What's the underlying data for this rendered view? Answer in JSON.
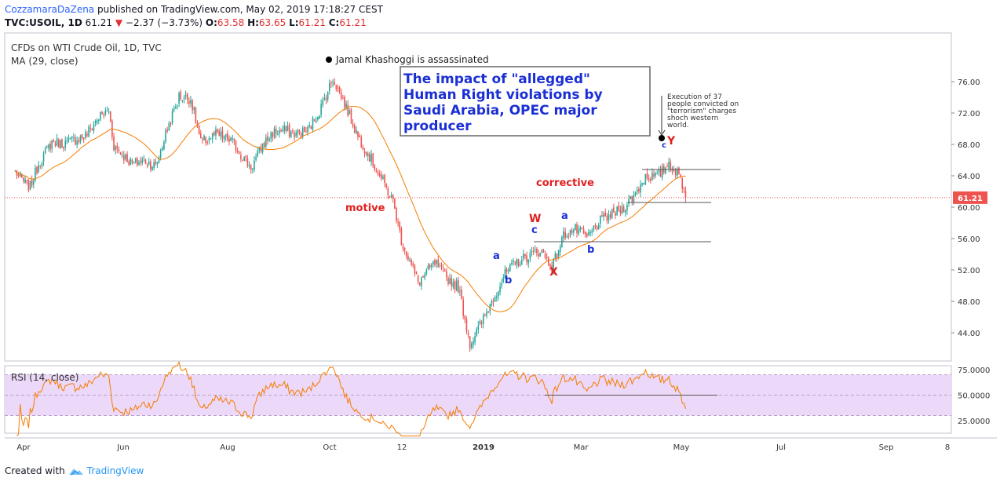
{
  "header": {
    "author": "CozzamaraDaZena",
    "published": "published on TradingView.com, May 02, 2019 17:18:27 CEST",
    "symbol": "TVC:USOIL, 1D",
    "last": "61.21",
    "change_arrow": "▼",
    "change": "−2.37 (−3.73%)",
    "o_label": "O:",
    "o_val": "63.58",
    "h_label": "H:",
    "h_val": "63.65",
    "l_label": "L:",
    "l_val": "61.21",
    "c_label": "C:",
    "c_val": "61.21"
  },
  "legend": {
    "series": "CFDs on WTI Crude Oil, 1D, TVC",
    "ma": "MA (29, close)",
    "rsi": "RSI (14, close)"
  },
  "annotations": {
    "khashoggi": "Jamal Khashoggi is assassinated",
    "headline": "The impact of \"allegged\" Human Right violations by Saudi Arabia, OPEC major producer",
    "execution": "Execution of 37 people convicted on \"terrorism\" charges shoch western world.",
    "motive": "motive",
    "corrective": "corrective",
    "wave_W": "W",
    "wave_X": "X",
    "wave_Y": "Y",
    "wave_a1": "a",
    "wave_b1": "b",
    "wave_c1": "c",
    "wave_a2": "a",
    "wave_b2": "b",
    "wave_c2": "c"
  },
  "price_badge": "61.21",
  "colors": {
    "accent": "#2962ff",
    "up": "#26a69a",
    "down": "#ef5350",
    "ma": "#f57c00",
    "rsi": "#f57c00",
    "rsi_band": "#ecd8f8",
    "wave_red": "#e02020",
    "wave_blue": "#1a2fd4",
    "badge": "#ef5350"
  },
  "footer": {
    "created_with": "Created with",
    "brand": "TradingView"
  },
  "chart_data": {
    "type": "candlestick",
    "title": "CFDs on WTI Crude Oil, 1D, TVC",
    "y_ticks": [
      "76.00",
      "72.00",
      "68.00",
      "64.00",
      "60.00",
      "56.00",
      "52.00",
      "48.00",
      "44.00"
    ],
    "ylim": [
      41,
      78
    ],
    "x_ticks": [
      "Apr",
      "Jun",
      "Aug",
      "Oct",
      "12",
      "2019",
      "Mar",
      "May",
      "Jul",
      "Sep",
      "8"
    ],
    "close_path": [
      [
        "2018-03-27",
        64.5
      ],
      [
        "2018-04-02",
        63.0
      ],
      [
        "2018-04-05",
        62.6
      ],
      [
        "2018-04-10",
        65.5
      ],
      [
        "2018-04-18",
        68.3
      ],
      [
        "2018-04-25",
        68.1
      ],
      [
        "2018-05-08",
        69.1
      ],
      [
        "2018-05-16",
        71.5
      ],
      [
        "2018-05-22",
        72.3
      ],
      [
        "2018-05-25",
        67.8
      ],
      [
        "2018-06-05",
        65.5
      ],
      [
        "2018-06-12",
        66.0
      ],
      [
        "2018-06-19",
        65.2
      ],
      [
        "2018-06-26",
        70.0
      ],
      [
        "2018-07-03",
        74.1
      ],
      [
        "2018-07-10",
        73.8
      ],
      [
        "2018-07-16",
        68.2
      ],
      [
        "2018-07-25",
        69.3
      ],
      [
        "2018-08-03",
        68.5
      ],
      [
        "2018-08-15",
        65.0
      ],
      [
        "2018-08-22",
        67.9
      ],
      [
        "2018-08-28",
        69.5
      ],
      [
        "2018-09-04",
        69.8
      ],
      [
        "2018-09-11",
        69.3
      ],
      [
        "2018-09-18",
        69.8
      ],
      [
        "2018-09-25",
        72.3
      ],
      [
        "2018-10-03",
        76.4
      ],
      [
        "2018-10-10",
        73.2
      ],
      [
        "2018-10-18",
        69.0
      ],
      [
        "2018-10-24",
        66.8
      ],
      [
        "2018-11-01",
        63.6
      ],
      [
        "2018-11-08",
        60.7
      ],
      [
        "2018-11-13",
        55.7
      ],
      [
        "2018-11-23",
        50.4
      ],
      [
        "2018-12-03",
        52.9
      ],
      [
        "2018-12-10",
        51.0
      ],
      [
        "2018-12-17",
        49.8
      ],
      [
        "2018-12-24",
        42.5
      ],
      [
        "2018-12-31",
        45.4
      ],
      [
        "2019-01-07",
        48.5
      ],
      [
        "2019-01-14",
        51.5
      ],
      [
        "2019-01-21",
        53.0
      ],
      [
        "2019-01-28",
        53.8
      ],
      [
        "2019-02-04",
        54.5
      ],
      [
        "2019-02-11",
        52.4
      ],
      [
        "2019-02-18",
        56.5
      ],
      [
        "2019-02-25",
        57.2
      ],
      [
        "2019-03-04",
        56.1
      ],
      [
        "2019-03-11",
        58.1
      ],
      [
        "2019-03-18",
        59.0
      ],
      [
        "2019-03-25",
        59.8
      ],
      [
        "2019-04-01",
        61.5
      ],
      [
        "2019-04-08",
        64.0
      ],
      [
        "2019-04-15",
        63.8
      ],
      [
        "2019-04-22",
        65.7
      ],
      [
        "2019-04-29",
        63.6
      ],
      [
        "2019-05-02",
        61.21
      ]
    ],
    "ma_period": 29,
    "rsi_period": 14,
    "rsi_ticks": [
      "75.0000",
      "50.0000",
      "25.0000"
    ],
    "horizontal_lines": [
      64.8,
      60.6,
      55.6
    ],
    "last_price": 61.21
  }
}
